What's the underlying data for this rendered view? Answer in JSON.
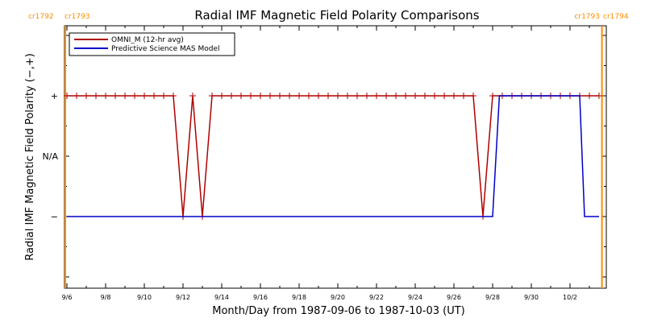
{
  "chart_data": {
    "type": "line",
    "title": "Radial IMF Magnetic Field Polarity Comparisons",
    "xlabel": "Month/Day from 1987-09-06 to 1987-10-03 (UT)",
    "ylabel": "Radial IMF Magnetic Field Polarity (−,+)",
    "x_range_days": [
      0,
      28.2
    ],
    "y_range": [
      -2,
      2
    ],
    "x_ticks": [
      {
        "day": 0,
        "label": "9/6"
      },
      {
        "day": 2,
        "label": "9/8"
      },
      {
        "day": 4,
        "label": "9/10"
      },
      {
        "day": 6,
        "label": "9/12"
      },
      {
        "day": 8,
        "label": "9/14"
      },
      {
        "day": 10,
        "label": "9/16"
      },
      {
        "day": 12,
        "label": "9/18"
      },
      {
        "day": 14,
        "label": "9/20"
      },
      {
        "day": 16,
        "label": "9/22"
      },
      {
        "day": 18,
        "label": "9/24"
      },
      {
        "day": 20,
        "label": "9/26"
      },
      {
        "day": 22,
        "label": "9/28"
      },
      {
        "day": 24,
        "label": "9/30"
      },
      {
        "day": 26,
        "label": "10/2"
      }
    ],
    "y_ticks": [
      {
        "value": 1,
        "label": "+"
      },
      {
        "value": 0,
        "label": "N/A"
      },
      {
        "value": -1,
        "label": "−"
      }
    ],
    "carrington_markers": [
      {
        "day": 0,
        "left_label": "cr1792",
        "right_label": "cr1793",
        "color": "#ff8c00"
      },
      {
        "day": 27.65,
        "left_label": "cr1793",
        "right_label": "cr1794",
        "color": "#ff8c00"
      }
    ],
    "legend": {
      "position": "top-left",
      "entries": [
        {
          "name": "OMNI_M (12-hr avg)",
          "color": "#b00000"
        },
        {
          "name": "Predictive Science MAS Model",
          "color": "#0000cc"
        }
      ]
    },
    "series": [
      {
        "name": "OMNI_M (12-hr avg)",
        "color": "#b00000",
        "marker": "plus",
        "step_days": 0.5,
        "values": [
          1,
          1,
          1,
          1,
          1,
          1,
          1,
          1,
          1,
          1,
          1,
          1,
          -1,
          1,
          -1,
          1,
          1,
          1,
          1,
          1,
          1,
          1,
          1,
          1,
          1,
          1,
          1,
          1,
          1,
          1,
          1,
          1,
          1,
          1,
          1,
          1,
          1,
          1,
          1,
          1,
          1,
          1,
          1,
          -1,
          1,
          1,
          1,
          1,
          1,
          1,
          1,
          1,
          1,
          1,
          1,
          1
        ]
      },
      {
        "name": "Predictive Science MAS Model",
        "color": "#0000cc",
        "points": [
          [
            0,
            -1
          ],
          [
            22.0,
            -1
          ],
          [
            22.35,
            1
          ],
          [
            26.5,
            1
          ],
          [
            26.75,
            -1
          ],
          [
            27.5,
            -1
          ]
        ]
      }
    ]
  }
}
